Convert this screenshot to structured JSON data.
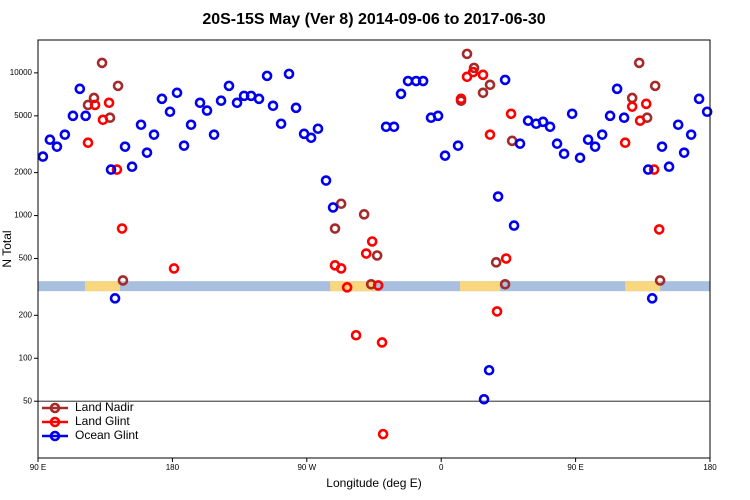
{
  "chart_data": {
    "type": "scatter",
    "title": "20S-15S May (Ver 8)   2014-09-06 to 2017-06-30",
    "x_label": "Longitude (deg E)",
    "y_label": "N Total",
    "xlim": [
      90,
      540
    ],
    "ylim": [
      20,
      17000
    ],
    "y_log": true,
    "xticks": [
      {
        "value": 90,
        "label": "90 E"
      },
      {
        "value": 180,
        "label": "180"
      },
      {
        "value": 270,
        "label": "90 W"
      },
      {
        "value": 360,
        "label": "0"
      },
      {
        "value": 450,
        "label": "90 E"
      },
      {
        "value": 540,
        "label": "180"
      }
    ],
    "yticks": [
      50,
      100,
      200,
      500,
      1000,
      2000,
      5000,
      10000
    ],
    "reference_line": {
      "value": 50,
      "color": "#555555"
    },
    "band": {
      "value": 320,
      "color": "#a8bfdf",
      "land_color": "#f9d77e",
      "land_spans": [
        [
          121.5,
          144.9
        ],
        [
          285.6,
          315.7
        ],
        [
          372.6,
          399.4
        ],
        [
          483.2,
          506.6
        ]
      ]
    },
    "legend": "lower left",
    "series": [
      {
        "name": "Land Nadir",
        "color": "#a52a2a",
        "x": [
          123.5,
          127.5,
          132.9,
          138.2,
          143.6,
          146.9,
          288.9,
          293,
          308.4,
          313.1,
          317.1,
          373.3,
          377.3,
          382,
          388,
          392.7,
          396.8,
          402.8,
          407.5,
          487.9,
          492.6,
          497.9,
          503.3,
          506.6
        ],
        "values": [
          5960,
          6670,
          11750,
          4850,
          8110,
          351,
          811,
          1210,
          1020,
          330,
          525,
          6380,
          13590,
          10840,
          7250,
          8250,
          470,
          330,
          3340,
          6670,
          11750,
          4850,
          8110,
          351
        ]
      },
      {
        "name": "Land Glint",
        "color": "#ff0000",
        "x": [
          123.5,
          128.2,
          133.5,
          137.6,
          142.9,
          146.3,
          181.1,
          288.9,
          293,
          297,
          303,
          309.8,
          313.8,
          317.8,
          320.4,
          321.1,
          373.3,
          377.3,
          381.4,
          388,
          392.7,
          397.4,
          403.5,
          406.8,
          483.2,
          487.9,
          493.2,
          497.3,
          502.6,
          506
        ],
        "values": [
          3240,
          5960,
          4690,
          6170,
          2100,
          811,
          426,
          448,
          426,
          314,
          145,
          542,
          658,
          324,
          129,
          29.4,
          6580,
          9390,
          10130,
          9690,
          3690,
          213,
          500,
          5170,
          3240,
          5800,
          4620,
          6070,
          2100,
          800
        ]
      },
      {
        "name": "Ocean Glint",
        "color": "#0000ee",
        "x": [
          93.3,
          98,
          102.7,
          108,
          113.4,
          118,
          121.9,
          138.9,
          141.6,
          148.3,
          153,
          159,
          163,
          167.7,
          173,
          178.4,
          183.1,
          187.8,
          192.5,
          198.5,
          203.2,
          207.9,
          212.6,
          217.9,
          223.3,
          228,
          232.7,
          238,
          243.4,
          247.4,
          252.8,
          258.1,
          262.8,
          268.2,
          272.9,
          277.5,
          282.9,
          287.6,
          323.1,
          328.4,
          333.1,
          337.8,
          343.2,
          347.9,
          353.2,
          357.9,
          362.6,
          371.3,
          388.7,
          392.1,
          398.1,
          402.8,
          408.8,
          412.8,
          418.2,
          423.6,
          428.2,
          432.9,
          437.6,
          442.3,
          447.7,
          453,
          458.4,
          463.1,
          467.8,
          473.1,
          477.8,
          482.5,
          498.6,
          501.3,
          507.9,
          512.6,
          518.7,
          522.7,
          527.4,
          532.7,
          538.1
        ],
        "values": [
          2590,
          3400,
          3040,
          3690,
          5000,
          7730,
          5000,
          2100,
          263,
          3040,
          2200,
          4330,
          2760,
          3690,
          6580,
          5340,
          7250,
          3090,
          4330,
          6170,
          5440,
          3690,
          6380,
          8110,
          6170,
          6900,
          6900,
          6580,
          9530,
          5880,
          4400,
          9840,
          5690,
          3740,
          3510,
          4060,
          1760,
          1140,
          4190,
          4190,
          7130,
          8770,
          8770,
          8770,
          4850,
          5000,
          2630,
          3090,
          51.6,
          82.4,
          1360,
          8930,
          851,
          3190,
          4620,
          4400,
          4540,
          4190,
          3190,
          2710,
          5170,
          2540,
          3400,
          3040,
          3690,
          5000,
          7730,
          4850,
          2100,
          263,
          3040,
          2200,
          4330,
          2760,
          3690,
          6580,
          5340
        ]
      }
    ]
  }
}
